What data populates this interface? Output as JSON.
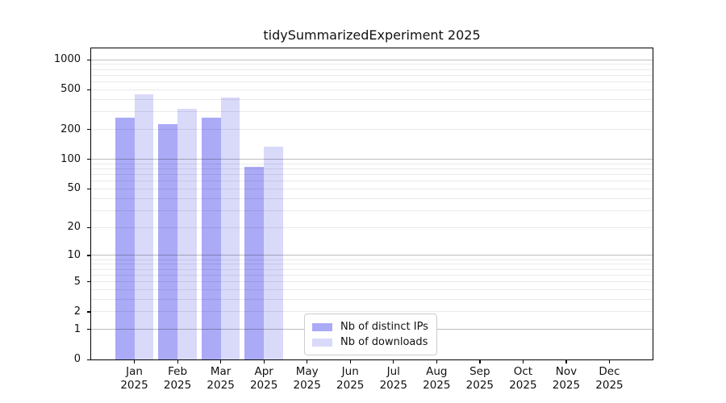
{
  "chart_data": {
    "type": "bar",
    "title": "tidySummarizedExperiment 2025",
    "categories": [
      "Jan 2025",
      "Feb 2025",
      "Mar 2025",
      "Apr 2025",
      "May 2025",
      "Jun 2025",
      "Jul 2025",
      "Aug 2025",
      "Sep 2025",
      "Oct 2025",
      "Nov 2025",
      "Dec 2025"
    ],
    "series": [
      {
        "name": "Nb of distinct IPs",
        "color": "#aaaaf7",
        "values": [
          260,
          228,
          262,
          84,
          0,
          0,
          0,
          0,
          0,
          0,
          0,
          0
        ]
      },
      {
        "name": "Nb of downloads",
        "color": "#d9d9fa",
        "values": [
          450,
          325,
          420,
          133,
          0,
          0,
          0,
          0,
          0,
          0,
          0,
          0
        ]
      }
    ],
    "xlabel": "",
    "ylabel": "",
    "yscale": "log1p",
    "ylim": [
      0,
      1300
    ],
    "y_ticks": [
      1000,
      500,
      200,
      100,
      50,
      20,
      10,
      5,
      2,
      1,
      0
    ],
    "grid": {
      "major_values": [
        1,
        10,
        100,
        1000
      ],
      "minor_decades": [
        1,
        10,
        100
      ],
      "minor_mantissas": [
        2,
        3,
        4,
        5,
        6,
        7,
        8,
        9
      ],
      "major_color": "#bdbdbd",
      "minor_color": "#e9e9e9"
    },
    "legend_position": "lower center-left inside plot"
  }
}
